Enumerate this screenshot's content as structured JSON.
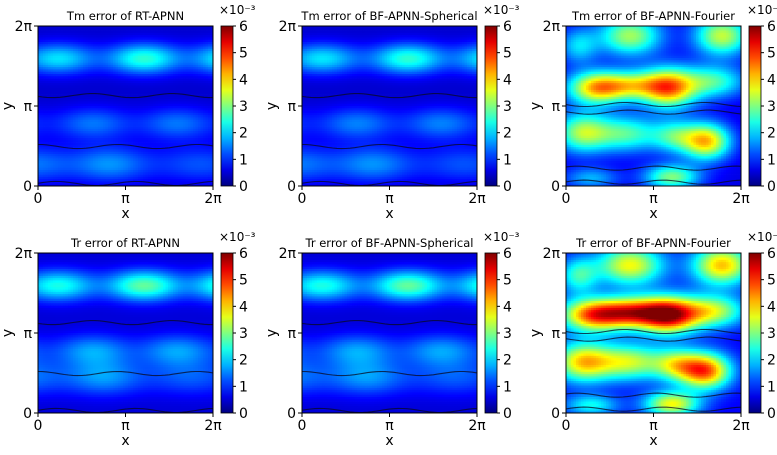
{
  "figure": {
    "colorbar_exponent_label": "×10⁻³",
    "colorbar_ticks": [
      "0",
      "1",
      "2",
      "3",
      "4",
      "5",
      "6"
    ]
  },
  "chart_data": [
    {
      "type": "heatmap",
      "title": "Tm error of RT-APNN",
      "xlabel": "x",
      "ylabel": "y",
      "xticks": [
        "0",
        "π",
        "2π"
      ],
      "yticks": [
        "0",
        "π",
        "2π"
      ],
      "xlim": [
        0,
        6.2832
      ],
      "ylim": [
        0,
        6.2832
      ],
      "colorbar": {
        "label": "×10⁻³",
        "range": [
          0,
          6
        ],
        "ticks": [
          0,
          1,
          2,
          3,
          4,
          5,
          6
        ],
        "colormap": "jet"
      },
      "field": {
        "base": 0.45,
        "bands": [
          {
            "y": 5.0,
            "amp": 1.55,
            "wy": 0.42,
            "x": 4.6,
            "wx": 3.2,
            "xmod": 0.35
          },
          {
            "y": 2.45,
            "amp": 0.8,
            "wy": 0.45,
            "x": 3.5,
            "wx": 3.0,
            "xmod": 0.3
          },
          {
            "y": 0.85,
            "amp": 1.05,
            "wy": 0.5,
            "x": 1.7,
            "wx": 1.6,
            "xmod": 0.2
          }
        ]
      }
    },
    {
      "type": "heatmap",
      "title": "Tm error of BF-APNN-Spherical",
      "xlabel": "x",
      "ylabel": "y",
      "xticks": [
        "0",
        "π",
        "2π"
      ],
      "yticks": [
        "0",
        "π",
        "2π"
      ],
      "xlim": [
        0,
        6.2832
      ],
      "ylim": [
        0,
        6.2832
      ],
      "colorbar": {
        "label": "×10⁻³",
        "range": [
          0,
          6
        ],
        "ticks": [
          0,
          1,
          2,
          3,
          4,
          5,
          6
        ],
        "colormap": "jet"
      },
      "field": {
        "base": 0.45,
        "bands": [
          {
            "y": 5.0,
            "amp": 1.55,
            "wy": 0.42,
            "x": 4.5,
            "wx": 3.2,
            "xmod": 0.35
          },
          {
            "y": 2.45,
            "amp": 0.85,
            "wy": 0.45,
            "x": 3.5,
            "wx": 3.0,
            "xmod": 0.3
          },
          {
            "y": 0.85,
            "amp": 1.05,
            "wy": 0.5,
            "x": 1.6,
            "wx": 1.6,
            "xmod": 0.2
          }
        ]
      }
    },
    {
      "type": "heatmap",
      "title": "Tm error of BF-APNN-Fourier",
      "xlabel": "x",
      "ylabel": "y",
      "xticks": [
        "0",
        "π",
        "2π"
      ],
      "yticks": [
        "0",
        "π",
        "2π"
      ],
      "xlim": [
        0,
        6.2832
      ],
      "ylim": [
        0,
        6.2832
      ],
      "colorbar": {
        "label": "×10⁻³",
        "range": [
          0,
          6
        ],
        "ticks": [
          0,
          1,
          2,
          3,
          4,
          5,
          6
        ],
        "colormap": "jet"
      },
      "field": {
        "base": 0.6,
        "blobs": [
          {
            "x": 1.1,
            "y": 3.85,
            "sx": 0.75,
            "sy": 0.45,
            "v": 3.4
          },
          {
            "x": 3.7,
            "y": 3.85,
            "sx": 0.7,
            "sy": 0.55,
            "v": 3.7
          },
          {
            "x": 2.4,
            "y": 3.95,
            "sx": 0.8,
            "sy": 0.4,
            "v": 2.2
          },
          {
            "x": 5.3,
            "y": 4.1,
            "sx": 0.8,
            "sy": 0.45,
            "v": 2.0
          },
          {
            "x": 5.05,
            "y": 1.75,
            "sx": 0.6,
            "sy": 0.5,
            "v": 3.4
          },
          {
            "x": 0.6,
            "y": 2.1,
            "sx": 0.7,
            "sy": 0.55,
            "v": 2.6
          },
          {
            "x": 2.2,
            "y": 2.05,
            "sx": 0.8,
            "sy": 0.5,
            "v": 2.0
          },
          {
            "x": 3.9,
            "y": 1.95,
            "sx": 0.6,
            "sy": 0.45,
            "v": 1.8
          },
          {
            "x": 2.3,
            "y": 5.9,
            "sx": 0.8,
            "sy": 0.55,
            "v": 2.6
          },
          {
            "x": 5.6,
            "y": 5.9,
            "sx": 0.7,
            "sy": 0.55,
            "v": 2.8
          },
          {
            "x": 0.45,
            "y": 5.5,
            "sx": 0.5,
            "sy": 0.5,
            "v": 1.4
          },
          {
            "x": 3.8,
            "y": 0.35,
            "sx": 0.7,
            "sy": 0.35,
            "v": 2.4
          },
          {
            "x": 0.9,
            "y": 0.3,
            "sx": 0.7,
            "sy": 0.3,
            "v": 1.2
          }
        ]
      }
    },
    {
      "type": "heatmap",
      "title": "Tr error of RT-APNN",
      "xlabel": "x",
      "ylabel": "y",
      "xticks": [
        "0",
        "π",
        "2π"
      ],
      "yticks": [
        "0",
        "π",
        "2π"
      ],
      "xlim": [
        0,
        6.2832
      ],
      "ylim": [
        0,
        6.2832
      ],
      "colorbar": {
        "label": "×10⁻³",
        "range": [
          0,
          6
        ],
        "ticks": [
          0,
          1,
          2,
          3,
          4,
          5,
          6
        ],
        "colormap": "jet"
      },
      "field": {
        "base": 0.5,
        "bands": [
          {
            "y": 5.0,
            "amp": 1.75,
            "wy": 0.42,
            "x": 4.6,
            "wx": 3.3,
            "xmod": 0.35
          },
          {
            "y": 2.45,
            "amp": 0.95,
            "wy": 0.45,
            "x": 3.5,
            "wx": 3.0,
            "xmod": 0.3
          },
          {
            "y": 1.4,
            "amp": 1.0,
            "wy": 0.5,
            "x": 1.7,
            "wx": 1.8,
            "xmod": 0.2
          }
        ]
      }
    },
    {
      "type": "heatmap",
      "title": "Tr error of BF-APNN-Spherical",
      "xlabel": "x",
      "ylabel": "y",
      "xticks": [
        "0",
        "π",
        "2π"
      ],
      "yticks": [
        "0",
        "π",
        "2π"
      ],
      "xlim": [
        0,
        6.2832
      ],
      "ylim": [
        0,
        6.2832
      ],
      "colorbar": {
        "label": "×10⁻³",
        "range": [
          0,
          6
        ],
        "ticks": [
          0,
          1,
          2,
          3,
          4,
          5,
          6
        ],
        "colormap": "jet"
      },
      "field": {
        "base": 0.5,
        "bands": [
          {
            "y": 5.0,
            "amp": 1.75,
            "wy": 0.42,
            "x": 4.5,
            "wx": 3.3,
            "xmod": 0.35
          },
          {
            "y": 2.45,
            "amp": 0.95,
            "wy": 0.45,
            "x": 3.5,
            "wx": 3.0,
            "xmod": 0.3
          },
          {
            "y": 1.4,
            "amp": 1.0,
            "wy": 0.5,
            "x": 1.6,
            "wx": 1.8,
            "xmod": 0.2
          }
        ]
      }
    },
    {
      "type": "heatmap",
      "title": "Tr error of BF-APNN-Fourier",
      "xlabel": "x",
      "ylabel": "y",
      "xticks": [
        "0",
        "π",
        "2π"
      ],
      "yticks": [
        "0",
        "π",
        "2π"
      ],
      "xlim": [
        0,
        6.2832
      ],
      "ylim": [
        0,
        6.2832
      ],
      "colorbar": {
        "label": "×10⁻³",
        "range": [
          0,
          6
        ],
        "ticks": [
          0,
          1,
          2,
          3,
          4,
          5,
          6
        ],
        "colormap": "jet"
      },
      "field": {
        "base": 0.7,
        "blobs": [
          {
            "x": 1.0,
            "y": 3.85,
            "sx": 0.85,
            "sy": 0.45,
            "v": 4.0
          },
          {
            "x": 3.7,
            "y": 3.85,
            "sx": 0.75,
            "sy": 0.5,
            "v": 4.7
          },
          {
            "x": 2.4,
            "y": 3.95,
            "sx": 0.8,
            "sy": 0.42,
            "v": 3.2
          },
          {
            "x": 5.3,
            "y": 4.0,
            "sx": 0.8,
            "sy": 0.45,
            "v": 2.6
          },
          {
            "x": 5.0,
            "y": 1.65,
            "sx": 0.65,
            "sy": 0.5,
            "v": 4.0
          },
          {
            "x": 0.6,
            "y": 2.0,
            "sx": 0.75,
            "sy": 0.55,
            "v": 3.2
          },
          {
            "x": 2.3,
            "y": 2.0,
            "sx": 0.85,
            "sy": 0.5,
            "v": 2.6
          },
          {
            "x": 3.95,
            "y": 1.9,
            "sx": 0.6,
            "sy": 0.45,
            "v": 2.2
          },
          {
            "x": 2.3,
            "y": 5.8,
            "sx": 0.85,
            "sy": 0.55,
            "v": 3.0
          },
          {
            "x": 5.6,
            "y": 5.8,
            "sx": 0.75,
            "sy": 0.55,
            "v": 3.4
          },
          {
            "x": 0.45,
            "y": 5.4,
            "sx": 0.5,
            "sy": 0.5,
            "v": 1.8
          },
          {
            "x": 3.8,
            "y": 0.35,
            "sx": 0.7,
            "sy": 0.35,
            "v": 3.0
          },
          {
            "x": 0.9,
            "y": 0.3,
            "sx": 0.7,
            "sy": 0.3,
            "v": 1.6
          }
        ]
      }
    }
  ]
}
